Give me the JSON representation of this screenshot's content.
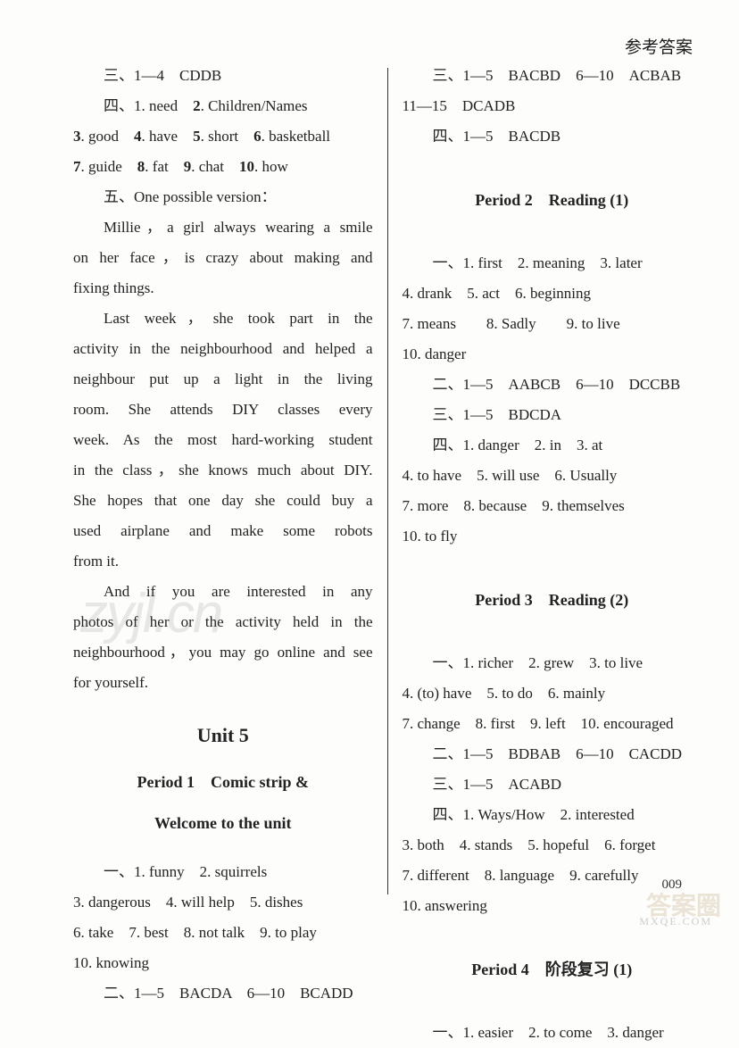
{
  "header": {
    "label": "参考答案"
  },
  "left": {
    "l1": "三、1—4　CDDB",
    "l2_a": "四、1. need　",
    "l2_b": "2",
    "l2_c": ". Children/Names",
    "l3_a": "3",
    "l3_b": ". good　",
    "l3_c": "4",
    "l3_d": ". have　",
    "l3_e": "5",
    "l3_f": ". short　",
    "l3_g": "6",
    "l3_h": ". basketball",
    "l4_a": "7",
    "l4_b": ". guide　",
    "l4_c": "8",
    "l4_d": ". fat　",
    "l4_e": "9",
    "l4_f": ". chat　",
    "l4_g": "10",
    "l4_h": ". how",
    "l5": "五、One possible version：",
    "p1a": "Millie，a girl always wearing a smile",
    "p1b": "on her face，is crazy about making and",
    "p1c": "fixing things.",
    "p2a": "Last week，she took part in the",
    "p2b": "activity in the neighbourhood and helped a",
    "p2c": "neighbour put up a light in the living",
    "p2d": "room.  She attends DIY classes every",
    "p2e": "week.  As the most hard-working student",
    "p2f": "in the class，she knows much about DIY.",
    "p2g": "She hopes that one day she could buy a",
    "p2h": "used airplane and make some robots",
    "p2i": "from it.",
    "p3a": "And if you are interested in any",
    "p3b": "photos of her or the activity held in the",
    "p3c": "neighbourhood，you may go online and see",
    "p3d": "for yourself.",
    "unit": "Unit 5",
    "period1a": "Period 1　Comic strip &",
    "period1b": "Welcome to the unit",
    "u1a": "一、1. funny　2. squirrels",
    "u1b": "3. dangerous　4. will help　5. dishes",
    "u1c": "6. take　7. best　8. not talk　9. to play",
    "u1d": "10. knowing",
    "u1e": "二、1—5　BACDA　6—10　BCADD"
  },
  "right": {
    "r1": "三、1—5　BACBD　6—10　ACBAB",
    "r2": "11—15　DCADB",
    "r3": "四、1—5　BACDB",
    "period2": "Period 2　Reading (1)",
    "p2l1": "一、1. first　2. meaning　3. later",
    "p2l2": "4. drank　5. act　6. beginning",
    "p2l3": "7. means　　8. Sadly　　9. to live",
    "p2l4": "10. danger",
    "p2l5": "二、1—5　AABCB　6—10　DCCBB",
    "p2l6": "三、1—5　BDCDA",
    "p2l7": "四、1. danger　2. in　3. at",
    "p2l8": "4. to have　5. will use　6. Usually",
    "p2l9": "7. more　8. because　9. themselves",
    "p2l10": "10. to fly",
    "period3": "Period 3　Reading (2)",
    "p3l1": "一、1. richer　2. grew　3. to live",
    "p3l2": "4. (to) have　5. to do　6. mainly",
    "p3l3": "7. change　8. first　9. left　10. encouraged",
    "p3l4": "二、1—5　BDBAB　6—10　CACDD",
    "p3l5": "三、1—5　ACABD",
    "p3l6": "四、1. Ways/How　2. interested",
    "p3l7": "3. both　4. stands　5. hopeful　6. forget",
    "p3l8": "7. different　8. language　9. carefully",
    "p3l9": "10. answering",
    "period4": "Period 4　阶段复习 (1)",
    "p4l1": "一、1. easier　2. to come　3. danger"
  },
  "watermarks": {
    "w1": "zyjl.cn",
    "stamp": "答案圈",
    "url": "MXQE.COM"
  },
  "page_num": "009"
}
